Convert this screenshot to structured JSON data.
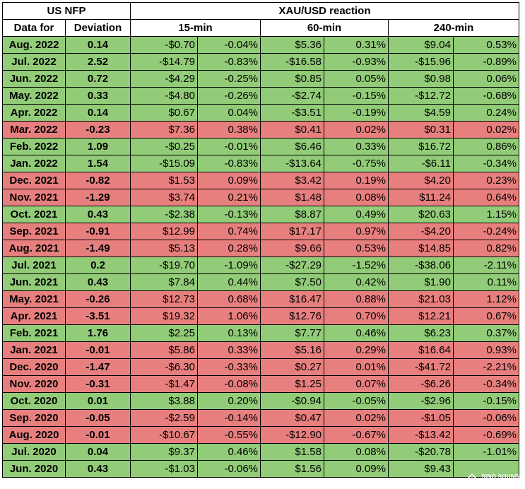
{
  "chart_data": {
    "type": "table",
    "header": {
      "group_left": "US NFP",
      "group_right": "XAU/USD reaction",
      "col_date": "Data for",
      "col_deviation": "Deviation",
      "periods": [
        "15-min",
        "60-min",
        "240-min"
      ]
    },
    "colors": {
      "positive_row": "#92cc78",
      "negative_row": "#e87f7f"
    },
    "rows": [
      {
        "date": "Aug. 2022",
        "dev": "0.14",
        "m15": "-$0.70",
        "p15": "-0.04%",
        "m60": "$5.36",
        "p60": "0.31%",
        "m240": "$9.04",
        "p240": "0.53%",
        "color": "g"
      },
      {
        "date": "Jul. 2022",
        "dev": "2.52",
        "m15": "-$14.79",
        "p15": "-0.83%",
        "m60": "-$16.58",
        "p60": "-0.93%",
        "m240": "-$15.96",
        "p240": "-0.89%",
        "color": "g"
      },
      {
        "date": "Jun. 2022",
        "dev": "0.72",
        "m15": "-$4.29",
        "p15": "-0.25%",
        "m60": "$0.85",
        "p60": "0.05%",
        "m240": "$0.98",
        "p240": "0.06%",
        "color": "g"
      },
      {
        "date": "May. 2022",
        "dev": "0.33",
        "m15": "-$4.80",
        "p15": "-0.26%",
        "m60": "-$2.74",
        "p60": "-0.15%",
        "m240": "-$12.72",
        "p240": "-0.68%",
        "color": "g"
      },
      {
        "date": "Apr. 2022",
        "dev": "0.14",
        "m15": "$0.67",
        "p15": "0.04%",
        "m60": "-$3.51",
        "p60": "-0.19%",
        "m240": "$4.59",
        "p240": "0.24%",
        "color": "g"
      },
      {
        "date": "Mar. 2022",
        "dev": "-0.23",
        "m15": "$7.36",
        "p15": "0.38%",
        "m60": "$0.41",
        "p60": "0.02%",
        "m240": "$0.31",
        "p240": "0.02%",
        "color": "r"
      },
      {
        "date": "Feb. 2022",
        "dev": "1.09",
        "m15": "-$0.25",
        "p15": "-0.01%",
        "m60": "$6.46",
        "p60": "0.33%",
        "m240": "$16.72",
        "p240": "0.86%",
        "color": "g"
      },
      {
        "date": "Jan. 2022",
        "dev": "1.54",
        "m15": "-$15.09",
        "p15": "-0.83%",
        "m60": "-$13.64",
        "p60": "-0.75%",
        "m240": "-$6.11",
        "p240": "-0.34%",
        "color": "g"
      },
      {
        "date": "Dec. 2021",
        "dev": "-0.82",
        "m15": "$1.53",
        "p15": "0.09%",
        "m60": "$3.42",
        "p60": "0.19%",
        "m240": "$4.20",
        "p240": "0.23%",
        "color": "r"
      },
      {
        "date": "Nov. 2021",
        "dev": "-1.29",
        "m15": "$3.74",
        "p15": "0.21%",
        "m60": "$1.48",
        "p60": "0.08%",
        "m240": "$11.24",
        "p240": "0.64%",
        "color": "r"
      },
      {
        "date": "Oct. 2021",
        "dev": "0.43",
        "m15": "-$2.38",
        "p15": "-0.13%",
        "m60": "$8.87",
        "p60": "0.49%",
        "m240": "$20.63",
        "p240": "1.15%",
        "color": "g"
      },
      {
        "date": "Sep. 2021",
        "dev": "-0.91",
        "m15": "$12.99",
        "p15": "0.74%",
        "m60": "$17.17",
        "p60": "0.97%",
        "m240": "-$4.20",
        "p240": "-0.24%",
        "color": "r"
      },
      {
        "date": "Aug. 2021",
        "dev": "-1.49",
        "m15": "$5.13",
        "p15": "0.28%",
        "m60": "$9.66",
        "p60": "0.53%",
        "m240": "$14.85",
        "p240": "0.82%",
        "color": "r"
      },
      {
        "date": "Jul. 2021",
        "dev": "0.2",
        "m15": "-$19.70",
        "p15": "-1.09%",
        "m60": "-$27.29",
        "p60": "-1.52%",
        "m240": "-$38.06",
        "p240": "-2.11%",
        "color": "g"
      },
      {
        "date": "Jun. 2021",
        "dev": "0.43",
        "m15": "$7.84",
        "p15": "0.44%",
        "m60": "$7.50",
        "p60": "0.42%",
        "m240": "$1.90",
        "p240": "0.11%",
        "color": "g"
      },
      {
        "date": "May. 2021",
        "dev": "-0.26",
        "m15": "$12.73",
        "p15": "0.68%",
        "m60": "$16.47",
        "p60": "0.88%",
        "m240": "$21.03",
        "p240": "1.12%",
        "color": "r"
      },
      {
        "date": "Apr. 2021",
        "dev": "-3.51",
        "m15": "$19.32",
        "p15": "1.06%",
        "m60": "$12.76",
        "p60": "0.70%",
        "m240": "$12.21",
        "p240": "0.67%",
        "color": "r"
      },
      {
        "date": "Feb. 2021",
        "dev": "1.76",
        "m15": "$2.25",
        "p15": "0.13%",
        "m60": "$7.77",
        "p60": "0.46%",
        "m240": "$6.23",
        "p240": "0.37%",
        "color": "g"
      },
      {
        "date": "Jan. 2021",
        "dev": "-0.01",
        "m15": "$5.86",
        "p15": "0.33%",
        "m60": "$5.16",
        "p60": "0.29%",
        "m240": "$16.64",
        "p240": "0.93%",
        "color": "r"
      },
      {
        "date": "Dec. 2020",
        "dev": "-1.47",
        "m15": "-$6.30",
        "p15": "-0.33%",
        "m60": "$0.27",
        "p60": "0.01%",
        "m240": "-$41.72",
        "p240": "-2.21%",
        "color": "r"
      },
      {
        "date": "Nov. 2020",
        "dev": "-0.31",
        "m15": "-$1.47",
        "p15": "-0.08%",
        "m60": "$1.25",
        "p60": "0.07%",
        "m240": "-$6.26",
        "p240": "-0.34%",
        "color": "r"
      },
      {
        "date": "Oct. 2020",
        "dev": "0.01",
        "m15": "$3.88",
        "p15": "0.20%",
        "m60": "-$0.94",
        "p60": "-0.05%",
        "m240": "-$2.96",
        "p240": "-0.15%",
        "color": "g"
      },
      {
        "date": "Sep. 2020",
        "dev": "-0.05",
        "m15": "-$2.59",
        "p15": "-0.14%",
        "m60": "$0.47",
        "p60": "0.02%",
        "m240": "-$1.05",
        "p240": "-0.06%",
        "color": "r"
      },
      {
        "date": "Aug. 2020",
        "dev": "-0.01",
        "m15": "-$10.67",
        "p15": "-0.55%",
        "m60": "-$12.90",
        "p60": "-0.67%",
        "m240": "-$13.42",
        "p240": "-0.69%",
        "color": "r"
      },
      {
        "date": "Jul. 2020",
        "dev": "0.04",
        "m15": "$9.37",
        "p15": "0.46%",
        "m60": "$1.58",
        "p60": "0.08%",
        "m240": "-$20.78",
        "p240": "-1.01%",
        "color": "g"
      },
      {
        "date": "Jun. 2020",
        "dev": "0.43",
        "m15": "-$1.03",
        "p15": "-0.06%",
        "m60": "$1.56",
        "p60": "0.09%",
        "m240": "$9.43",
        "p240": "",
        "color": "g"
      }
    ]
  },
  "watermark": {
    "brand": "SINO SOUND",
    "subtitle": "漢聲集團",
    "icon": "diamond-logo-icon"
  }
}
